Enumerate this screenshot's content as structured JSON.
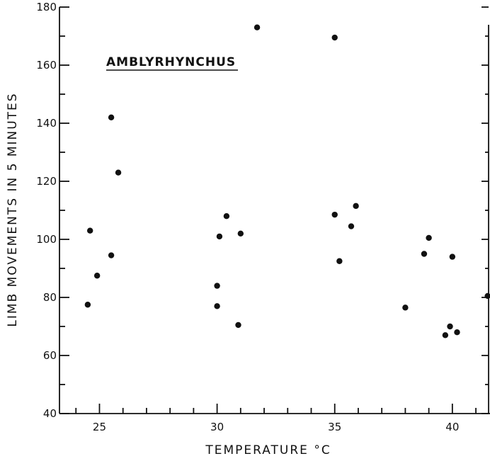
{
  "chart_data": {
    "type": "scatter",
    "title": "",
    "annotation": "AMBLYRHYNCHUS",
    "xlabel": "TEMPERATURE °C",
    "ylabel": "LIMB MOVEMENTS IN 5 MINUTES",
    "xlim": [
      23.3,
      41.6
    ],
    "ylim": [
      40,
      180
    ],
    "x_ticks": [
      25,
      30,
      35,
      40
    ],
    "y_ticks": [
      40,
      60,
      80,
      100,
      120,
      140,
      160,
      180
    ],
    "grid": false,
    "points": [
      {
        "x": 24.5,
        "y": 77.5
      },
      {
        "x": 24.6,
        "y": 103
      },
      {
        "x": 24.9,
        "y": 87.5
      },
      {
        "x": 25.5,
        "y": 142
      },
      {
        "x": 25.5,
        "y": 94.5
      },
      {
        "x": 25.8,
        "y": 123
      },
      {
        "x": 30.0,
        "y": 77
      },
      {
        "x": 30.0,
        "y": 84
      },
      {
        "x": 30.1,
        "y": 101
      },
      {
        "x": 30.4,
        "y": 108
      },
      {
        "x": 30.9,
        "y": 70.5
      },
      {
        "x": 31.0,
        "y": 102
      },
      {
        "x": 31.7,
        "y": 173
      },
      {
        "x": 35.0,
        "y": 169.5
      },
      {
        "x": 35.0,
        "y": 108.5
      },
      {
        "x": 35.2,
        "y": 92.5
      },
      {
        "x": 35.7,
        "y": 104.5
      },
      {
        "x": 35.9,
        "y": 111.5
      },
      {
        "x": 38.0,
        "y": 76.5
      },
      {
        "x": 38.8,
        "y": 95
      },
      {
        "x": 39.0,
        "y": 100.5
      },
      {
        "x": 39.7,
        "y": 67
      },
      {
        "x": 39.9,
        "y": 70
      },
      {
        "x": 40.0,
        "y": 94
      },
      {
        "x": 40.2,
        "y": 68
      },
      {
        "x": 41.5,
        "y": 80.5
      }
    ]
  }
}
